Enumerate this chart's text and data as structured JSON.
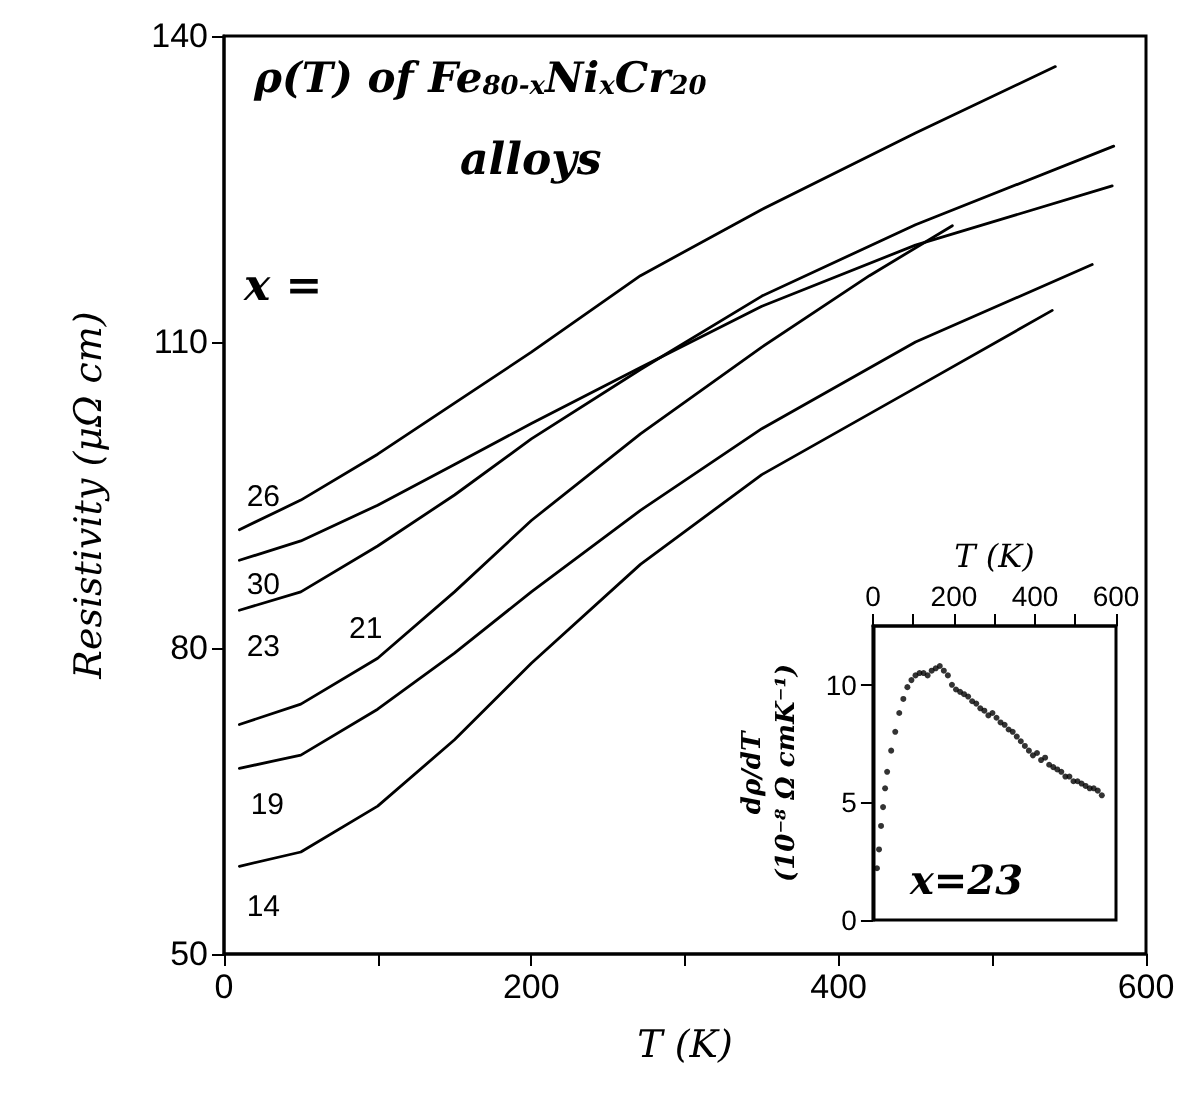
{
  "chart_data": [
    {
      "type": "line",
      "title": "ρ(T) of Fe$_{80-x}$Ni$_{x}$Cr$_{20}$",
      "subtitle": "alloys",
      "xlabel": "T (K)",
      "ylabel": "Resistivity (μΩ cm)",
      "annotations": [
        "x ="
      ],
      "xlim": [
        0,
        600
      ],
      "xticks": [
        0,
        {
          "value": 100,
          "label": null
        },
        200,
        {
          "value": 300,
          "label": null
        },
        400,
        {
          "value": 500,
          "label": null
        },
        600
      ],
      "ylim": [
        50,
        140
      ],
      "yticks": [
        50,
        80,
        110,
        140
      ],
      "marker": "none",
      "line_style": "solid",
      "series": [
        {
          "name": "26",
          "color": "#000000",
          "x": [
            10,
            50,
            100,
            150,
            200,
            271,
            350,
            450,
            541
          ],
          "values": [
            91.6,
            94.5,
            99,
            104,
            109,
            116.5,
            123,
            130.5,
            137
          ]
        },
        {
          "name": "30",
          "color": "#000000",
          "x": [
            10,
            50,
            100,
            150,
            200,
            271,
            350,
            450,
            578
          ],
          "values": [
            88.6,
            90.5,
            94,
            98,
            102,
            107.5,
            113.5,
            119.5,
            125.3
          ]
        },
        {
          "name": "23",
          "color": "#000000",
          "x": [
            10,
            50,
            100,
            150,
            200,
            271,
            350,
            450,
            579
          ],
          "values": [
            83.7,
            85.5,
            90,
            95,
            100.5,
            107.3,
            114.5,
            121.5,
            129.2
          ]
        },
        {
          "name": "21",
          "color": "#000000",
          "x": [
            10,
            50,
            100,
            150,
            200,
            271,
            350,
            420,
            474
          ],
          "values": [
            72.5,
            74.5,
            79,
            85.5,
            92.5,
            101,
            109.5,
            116.5,
            121.4
          ]
        },
        {
          "name": "19",
          "color": "#000000",
          "x": [
            10,
            50,
            100,
            150,
            200,
            271,
            350,
            450,
            565
          ],
          "values": [
            68.2,
            69.5,
            74,
            79.5,
            85.5,
            93.5,
            101.5,
            110,
            117.6
          ]
        },
        {
          "name": "14",
          "color": "#000000",
          "x": [
            10,
            50,
            100,
            150,
            200,
            271,
            350,
            450,
            539
          ],
          "values": [
            58.6,
            60,
            64.5,
            71,
            78.5,
            88.2,
            97,
            105.5,
            113.1
          ]
        }
      ]
    },
    {
      "type": "scatter",
      "xlabel": "T (K)",
      "ylabel": "dρ/dT (10⁻⁸ Ω cmK⁻¹)",
      "annotations": [
        "x=23"
      ],
      "xlim": [
        0,
        600
      ],
      "xticks": [
        0,
        {
          "value": 100,
          "label": null
        },
        200,
        {
          "value": 300,
          "label": null
        },
        400,
        {
          "value": 500,
          "label": null
        },
        600
      ],
      "ylim": [
        0,
        12.5
      ],
      "yticks": [
        0,
        5,
        10
      ],
      "marker": "circle",
      "series": [
        {
          "color": "#000000",
          "x": [
            10,
            15,
            20,
            25,
            30,
            35,
            45,
            55,
            65,
            75,
            85,
            95,
            105,
            115,
            125,
            135,
            145,
            155,
            165,
            175,
            185,
            195,
            205,
            215,
            225,
            235,
            245,
            255,
            265,
            275,
            285,
            295,
            305,
            315,
            325,
            335,
            345,
            355,
            365,
            375,
            385,
            395,
            405,
            415,
            425,
            435,
            445,
            455,
            465,
            475,
            485,
            495,
            505,
            515,
            525,
            535,
            545,
            555,
            565
          ],
          "values": [
            2.2,
            3.0,
            4.0,
            4.8,
            5.6,
            6.3,
            7.2,
            8.0,
            8.8,
            9.4,
            9.9,
            10.2,
            10.4,
            10.5,
            10.5,
            10.4,
            10.6,
            10.7,
            10.8,
            10.6,
            10.4,
            10.0,
            9.8,
            9.7,
            9.6,
            9.5,
            9.3,
            9.2,
            9.0,
            8.9,
            8.7,
            8.8,
            8.6,
            8.4,
            8.3,
            8.1,
            8.0,
            7.8,
            7.6,
            7.4,
            7.2,
            7.0,
            7.1,
            6.8,
            6.9,
            6.6,
            6.5,
            6.4,
            6.3,
            6.1,
            6.1,
            5.9,
            5.9,
            5.8,
            5.7,
            5.6,
            5.6,
            5.5,
            5.3
          ]
        }
      ]
    }
  ]
}
